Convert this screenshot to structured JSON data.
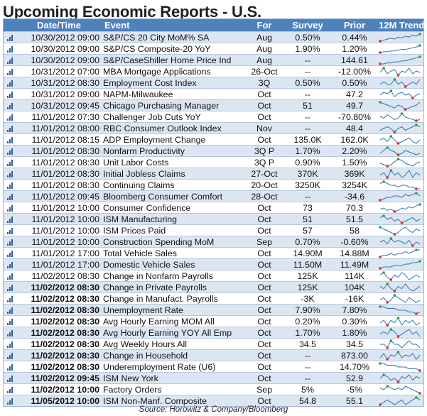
{
  "title": "Upcoming Economic Reports - U.S.",
  "headers": {
    "datetime": "Date/Time",
    "event": "Event",
    "for": "For",
    "survey": "Survey",
    "prior": "Prior",
    "trend": "12M Trend"
  },
  "rows": [
    {
      "dt": "10/30/2012 09:00",
      "ev": "S&P/CS 20 City MoM% SA",
      "fo": "Aug",
      "sv": "0.50%",
      "pr": "0.44%",
      "bold": false
    },
    {
      "dt": "10/30/2012 09:00",
      "ev": "S&P/CS Composite-20 YoY",
      "fo": "Aug",
      "sv": "1.90%",
      "pr": "1.20%",
      "bold": false
    },
    {
      "dt": "10/30/2012 09:00",
      "ev": "S&P/CaseShiller Home Price Ind",
      "fo": "Aug",
      "sv": "--",
      "pr": "144.61",
      "bold": false
    },
    {
      "dt": "10/31/2012 07:00",
      "ev": "MBA Mortgage Applications",
      "fo": "26-Oct",
      "sv": "--",
      "pr": "-12.00%",
      "bold": false
    },
    {
      "dt": "10/31/2012 08:30",
      "ev": "Employment Cost Index",
      "fo": "3Q",
      "sv": "0.50%",
      "pr": "0.50%",
      "bold": false
    },
    {
      "dt": "10/31/2012 09:00",
      "ev": "NAPM-Milwaukee",
      "fo": "Oct",
      "sv": "--",
      "pr": "47.2",
      "bold": false
    },
    {
      "dt": "10/31/2012 09:45",
      "ev": "Chicago Purchasing Manager",
      "fo": "Oct",
      "sv": "51",
      "pr": "49.7",
      "bold": false
    },
    {
      "dt": "11/01/2012 07:30",
      "ev": "Challenger Job Cuts YoY",
      "fo": "Oct",
      "sv": "--",
      "pr": "-70.80%",
      "bold": false
    },
    {
      "dt": "11/01/2012 08:00",
      "ev": "RBC Consumer Outlook Index",
      "fo": "Nov",
      "sv": "--",
      "pr": "48.4",
      "bold": false
    },
    {
      "dt": "11/01/2012 08:15",
      "ev": "ADP Employment Change",
      "fo": "Oct",
      "sv": "135.0K",
      "pr": "162.0K",
      "bold": false
    },
    {
      "dt": "11/01/2012 08:30",
      "ev": "Nonfarm Productivity",
      "fo": "3Q P",
      "sv": "1.70%",
      "pr": "2.20%",
      "bold": false
    },
    {
      "dt": "11/01/2012 08:30",
      "ev": "Unit Labor Costs",
      "fo": "3Q P",
      "sv": "0.90%",
      "pr": "1.50%",
      "bold": false
    },
    {
      "dt": "11/01/2012 08:30",
      "ev": "Initial Jobless Claims",
      "fo": "27-Oct",
      "sv": "370K",
      "pr": "369K",
      "bold": false
    },
    {
      "dt": "11/01/2012 08:30",
      "ev": "Continuing Claims",
      "fo": "20-Oct",
      "sv": "3250K",
      "pr": "3254K",
      "bold": false
    },
    {
      "dt": "11/01/2012 09:45",
      "ev": "Bloomberg Consumer Comfort",
      "fo": "28-Oct",
      "sv": "--",
      "pr": "-34.6",
      "bold": false
    },
    {
      "dt": "11/01/2012 10:00",
      "ev": "Consumer Confidence",
      "fo": "Oct",
      "sv": "73",
      "pr": "70.3",
      "bold": false
    },
    {
      "dt": "11/01/2012 10:00",
      "ev": "ISM Manufacturing",
      "fo": "Oct",
      "sv": "51",
      "pr": "51.5",
      "bold": false
    },
    {
      "dt": "11/01/2012 10:00",
      "ev": "ISM Prices Paid",
      "fo": "Oct",
      "sv": "57",
      "pr": "58",
      "bold": false
    },
    {
      "dt": "11/01/2012 10:00",
      "ev": "Construction Spending MoM",
      "fo": "Sep",
      "sv": "0.70%",
      "pr": "-0.60%",
      "bold": false
    },
    {
      "dt": "11/01/2012 17:00",
      "ev": "Total Vehicle Sales",
      "fo": "Oct",
      "sv": "14.90M",
      "pr": "14.88M",
      "bold": false
    },
    {
      "dt": "11/01/2012 17:00",
      "ev": "Domestic Vehicle Sales",
      "fo": "Oct",
      "sv": "11.50M",
      "pr": "11.49M",
      "bold": false
    },
    {
      "dt": "11/02/2012 08:30",
      "ev": "Change in Nonfarm Payrolls",
      "fo": "Oct",
      "sv": "125K",
      "pr": "114K",
      "bold": false
    },
    {
      "dt": "11/02/2012 08:30",
      "ev": "Change in Private Payrolls",
      "fo": "Oct",
      "sv": "125K",
      "pr": "104K",
      "bold": true
    },
    {
      "dt": "11/02/2012 08:30",
      "ev": "Change in Manufact. Payrolls",
      "fo": "Oct",
      "sv": "-3K",
      "pr": "-16K",
      "bold": true
    },
    {
      "dt": "11/02/2012 08:30",
      "ev": "Unemployment Rate",
      "fo": "Oct",
      "sv": "7.90%",
      "pr": "7.80%",
      "bold": true
    },
    {
      "dt": "11/02/2012 08:30",
      "ev": "Avg Hourly Earning MOM All",
      "fo": "Oct",
      "sv": "0.20%",
      "pr": "0.30%",
      "bold": true
    },
    {
      "dt": "11/02/2012 08:30",
      "ev": "Avg Hourly Earning YOY All Emp",
      "fo": "Oct",
      "sv": "1.70%",
      "pr": "1.80%",
      "bold": true
    },
    {
      "dt": "11/02/2012 08:30",
      "ev": "Avg Weekly Hours All",
      "fo": "Oct",
      "sv": "34.5",
      "pr": "34.5",
      "bold": true
    },
    {
      "dt": "11/02/2012 08:30",
      "ev": "Change in Household",
      "fo": "Oct",
      "sv": "--",
      "pr": "873.00",
      "bold": true
    },
    {
      "dt": "11/02/2012 08:30",
      "ev": "Underemployment Rate (U6)",
      "fo": "Oct",
      "sv": "--",
      "pr": "14.70%",
      "bold": true
    },
    {
      "dt": "11/02/2012 09:45",
      "ev": "ISM New York",
      "fo": "Oct",
      "sv": "--",
      "pr": "52.9",
      "bold": true
    },
    {
      "dt": "11/02/2012 10:00",
      "ev": "Factory Orders",
      "fo": "Sep",
      "sv": "5%",
      "pr": "-5%",
      "bold": true
    },
    {
      "dt": "11/05/2012 10:00",
      "ev": "ISM Non-Manf. Composite",
      "fo": "Oct",
      "sv": "54.8",
      "pr": "55.1",
      "bold": true
    }
  ],
  "trends": [
    [
      3,
      4,
      5,
      6,
      5,
      7,
      6,
      8,
      7,
      9,
      8,
      10
    ],
    [
      1,
      2,
      2,
      3,
      3,
      4,
      5,
      5,
      6,
      7,
      8,
      10
    ],
    [
      2,
      2,
      3,
      3,
      4,
      4,
      5,
      5,
      6,
      7,
      8,
      9
    ],
    [
      5,
      8,
      4,
      6,
      7,
      3,
      6,
      5,
      8,
      4,
      6,
      5
    ],
    [
      5,
      6,
      5,
      5,
      7,
      5,
      6,
      4,
      5,
      6,
      5,
      7
    ],
    [
      4,
      6,
      5,
      7,
      3,
      5,
      6,
      4,
      5,
      2,
      4,
      5
    ],
    [
      8,
      7,
      6,
      5,
      4,
      6,
      5,
      3,
      4,
      5,
      6,
      8
    ],
    [
      6,
      4,
      7,
      5,
      3,
      4,
      8,
      5,
      4,
      3,
      2,
      3
    ],
    [
      4,
      5,
      6,
      5,
      3,
      5,
      6,
      4,
      5,
      6,
      7,
      6
    ],
    [
      6,
      7,
      5,
      8,
      6,
      4,
      5,
      6,
      7,
      5,
      4,
      6
    ],
    [
      4,
      6,
      8,
      6,
      5,
      3,
      4,
      6,
      5,
      4,
      3,
      4
    ],
    [
      5,
      4,
      3,
      4,
      6,
      8,
      7,
      5,
      4,
      3,
      5,
      6
    ],
    [
      5,
      6,
      4,
      7,
      5,
      6,
      4,
      5,
      7,
      4,
      6,
      5
    ],
    [
      6,
      7,
      6,
      5,
      5,
      4,
      5,
      5,
      4,
      4,
      3,
      3
    ],
    [
      3,
      4,
      5,
      5,
      6,
      6,
      5,
      7,
      6,
      7,
      8,
      6
    ],
    [
      5,
      6,
      4,
      5,
      3,
      4,
      6,
      5,
      7,
      6,
      8,
      9
    ],
    [
      6,
      7,
      5,
      6,
      4,
      5,
      3,
      4,
      5,
      6,
      4,
      5
    ],
    [
      7,
      6,
      5,
      4,
      3,
      4,
      6,
      7,
      5,
      4,
      6,
      5
    ],
    [
      5,
      6,
      4,
      7,
      5,
      6,
      5,
      4,
      6,
      3,
      5,
      4
    ],
    [
      4,
      5,
      5,
      6,
      5,
      6,
      6,
      7,
      6,
      7,
      8,
      8
    ],
    [
      4,
      5,
      5,
      5,
      6,
      6,
      6,
      7,
      7,
      8,
      8,
      9
    ],
    [
      6,
      7,
      5,
      4,
      6,
      5,
      7,
      6,
      4,
      5,
      6,
      5
    ],
    [
      6,
      5,
      7,
      5,
      4,
      6,
      5,
      7,
      5,
      4,
      5,
      6
    ],
    [
      5,
      6,
      4,
      5,
      7,
      6,
      5,
      4,
      6,
      5,
      4,
      5
    ],
    [
      8,
      8,
      7,
      7,
      7,
      6,
      6,
      6,
      5,
      5,
      4,
      5
    ],
    [
      5,
      6,
      4,
      6,
      5,
      7,
      4,
      6,
      5,
      6,
      4,
      5
    ],
    [
      5,
      6,
      5,
      7,
      6,
      4,
      5,
      6,
      7,
      5,
      6,
      4
    ],
    [
      5,
      5,
      4,
      6,
      5,
      5,
      4,
      5,
      6,
      5,
      5,
      4
    ],
    [
      4,
      7,
      3,
      6,
      5,
      8,
      4,
      6,
      5,
      7,
      3,
      6
    ],
    [
      8,
      8,
      7,
      7,
      7,
      6,
      6,
      6,
      5,
      5,
      5,
      4
    ],
    [
      5,
      7,
      6,
      4,
      5,
      3,
      6,
      5,
      7,
      4,
      6,
      5
    ],
    [
      6,
      5,
      7,
      6,
      5,
      6,
      5,
      7,
      6,
      5,
      4,
      3
    ],
    [
      5,
      6,
      7,
      6,
      5,
      6,
      7,
      5,
      6,
      7,
      8,
      7
    ]
  ],
  "source": "Source: Horowitz & Company/Bloomberg",
  "colors": {
    "header": "#4f81bd",
    "alt_row": "#dce6f2",
    "spark_line": "#2e75b6",
    "spark_high": "#2e9e3f",
    "spark_low": "#d62b2b"
  },
  "icons": {
    "row_icon": "signal-bars-icon"
  }
}
